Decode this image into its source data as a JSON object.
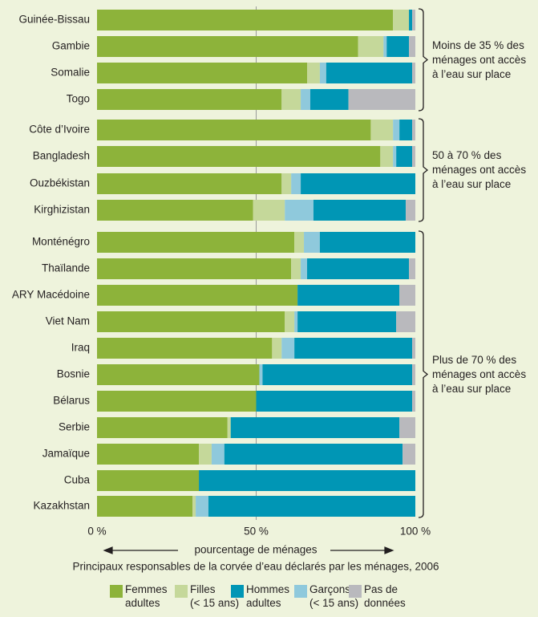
{
  "chart_data": {
    "type": "stacked-bar-horizontal",
    "categories": [
      "Guinée-Bissau",
      "Gambie",
      "Somalie",
      "Togo",
      "Côte d’Ivoire",
      "Bangladesh",
      "Ouzbékistan",
      "Kirghizistan",
      "Monténégro",
      "Thaïlande",
      "ARY Macédoine",
      "Viet Nam",
      "Iraq",
      "Bosnie",
      "Bélarus",
      "Serbie",
      "Jamaïque",
      "Cuba",
      "Kazakhstan"
    ],
    "series": [
      {
        "name": "Femmes\nadultes",
        "color": "#8db33a",
        "values": [
          93,
          82,
          66,
          58,
          86,
          89,
          58,
          49,
          62,
          61,
          63,
          59,
          55,
          51,
          50,
          41,
          32,
          32,
          30
        ]
      },
      {
        "name": "Filles\n(< 15 ans)",
        "color": "#c5d89a",
        "values": [
          5,
          8,
          4,
          6,
          7,
          4,
          3,
          10,
          3,
          3,
          0,
          3,
          3,
          0,
          0,
          1,
          4,
          0,
          1
        ]
      },
      {
        "name": "Garçons\n(< 15 ans)",
        "color": "#8fc9dc",
        "values": [
          0,
          1,
          2,
          3,
          2,
          1,
          3,
          9,
          5,
          2,
          0,
          1,
          4,
          1,
          0,
          0,
          4,
          0,
          4
        ]
      },
      {
        "name": "Hommes\nadultes",
        "color": "#0096b5",
        "values": [
          1,
          7,
          27,
          12,
          4,
          5,
          36,
          29,
          30,
          32,
          32,
          31,
          37,
          47,
          49,
          53,
          56,
          68,
          65
        ]
      },
      {
        "name": "Pas de\ndonnées",
        "color": "#b9b9bd",
        "values": [
          1,
          2,
          1,
          21,
          1,
          1,
          0,
          3,
          0,
          2,
          5,
          6,
          1,
          1,
          1,
          5,
          4,
          0,
          0
        ]
      }
    ],
    "xlim": [
      0,
      100
    ],
    "xticks": [
      {
        "value": 0,
        "label": "0 %"
      },
      {
        "value": 50,
        "label": "50 %"
      },
      {
        "value": 100,
        "label": "100 %"
      }
    ],
    "xlabel": "pourcentage de ménages",
    "subtitle": "Principaux responsables de la corvée d’eau déclarés par les ménages, 2006",
    "annotations": [
      "Moins de 35 % des\nménages ont accès\nà l’eau sur place",
      "50 à 70 % des\nménages ont accès\nà l’eau sur place",
      "Plus de 70 % des\nménages ont accès\nà l’eau sur place"
    ]
  }
}
